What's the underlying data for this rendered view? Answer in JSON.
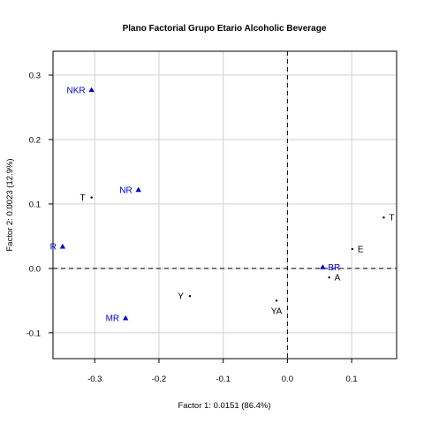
{
  "chart_data": {
    "type": "scatter",
    "title": "Plano Factorial Grupo Etario Alcoholic Beverage",
    "xlabel": "Factor 1: 0.0151 (86.4%)",
    "ylabel": "Factor 2: 0.0023 (12.9%)",
    "xlim": [
      -0.365,
      0.17
    ],
    "ylim": [
      -0.14,
      0.337
    ],
    "xticks": [
      -0.3,
      -0.2,
      -0.1,
      0.0,
      0.1
    ],
    "xtick_labels": [
      "-0.3",
      "-0.2",
      "-0.1",
      "0.0",
      "0.1"
    ],
    "yticks": [
      -0.1,
      0.0,
      0.1,
      0.2,
      0.3
    ],
    "ytick_labels": [
      "-0.1",
      "0.0",
      "0.1",
      "0.2",
      "0.3"
    ],
    "grid": true,
    "reference_lines": {
      "x": 0,
      "y": 0,
      "style": "dashed"
    },
    "series": [
      {
        "marker": "dot",
        "color": "#000000",
        "points": [
          {
            "label": "T",
            "x": -0.305,
            "y": 0.11,
            "label_pos": "left"
          },
          {
            "label": "Y",
            "x": -0.152,
            "y": -0.043,
            "label_pos": "left"
          },
          {
            "label": "YA",
            "x": -0.017,
            "y": -0.05,
            "label_pos": "below"
          },
          {
            "label": "A",
            "x": 0.065,
            "y": -0.014,
            "label_pos": "right"
          },
          {
            "label": "E",
            "x": 0.101,
            "y": 0.03,
            "label_pos": "right"
          },
          {
            "label": "T",
            "x": 0.15,
            "y": 0.079,
            "label_pos": "right"
          }
        ]
      },
      {
        "marker": "triangle",
        "color": "#0000cc",
        "points": [
          {
            "label": "NKR",
            "x": -0.305,
            "y": 0.277,
            "label_pos": "left"
          },
          {
            "label": "NR",
            "x": -0.232,
            "y": 0.122,
            "label_pos": "left"
          },
          {
            "label": "R",
            "x": -0.35,
            "y": 0.034,
            "label_pos": "left"
          },
          {
            "label": "MR",
            "x": -0.252,
            "y": -0.077,
            "label_pos": "left"
          },
          {
            "label": "BR",
            "x": 0.055,
            "y": 0.002,
            "label_pos": "right"
          }
        ]
      }
    ]
  }
}
